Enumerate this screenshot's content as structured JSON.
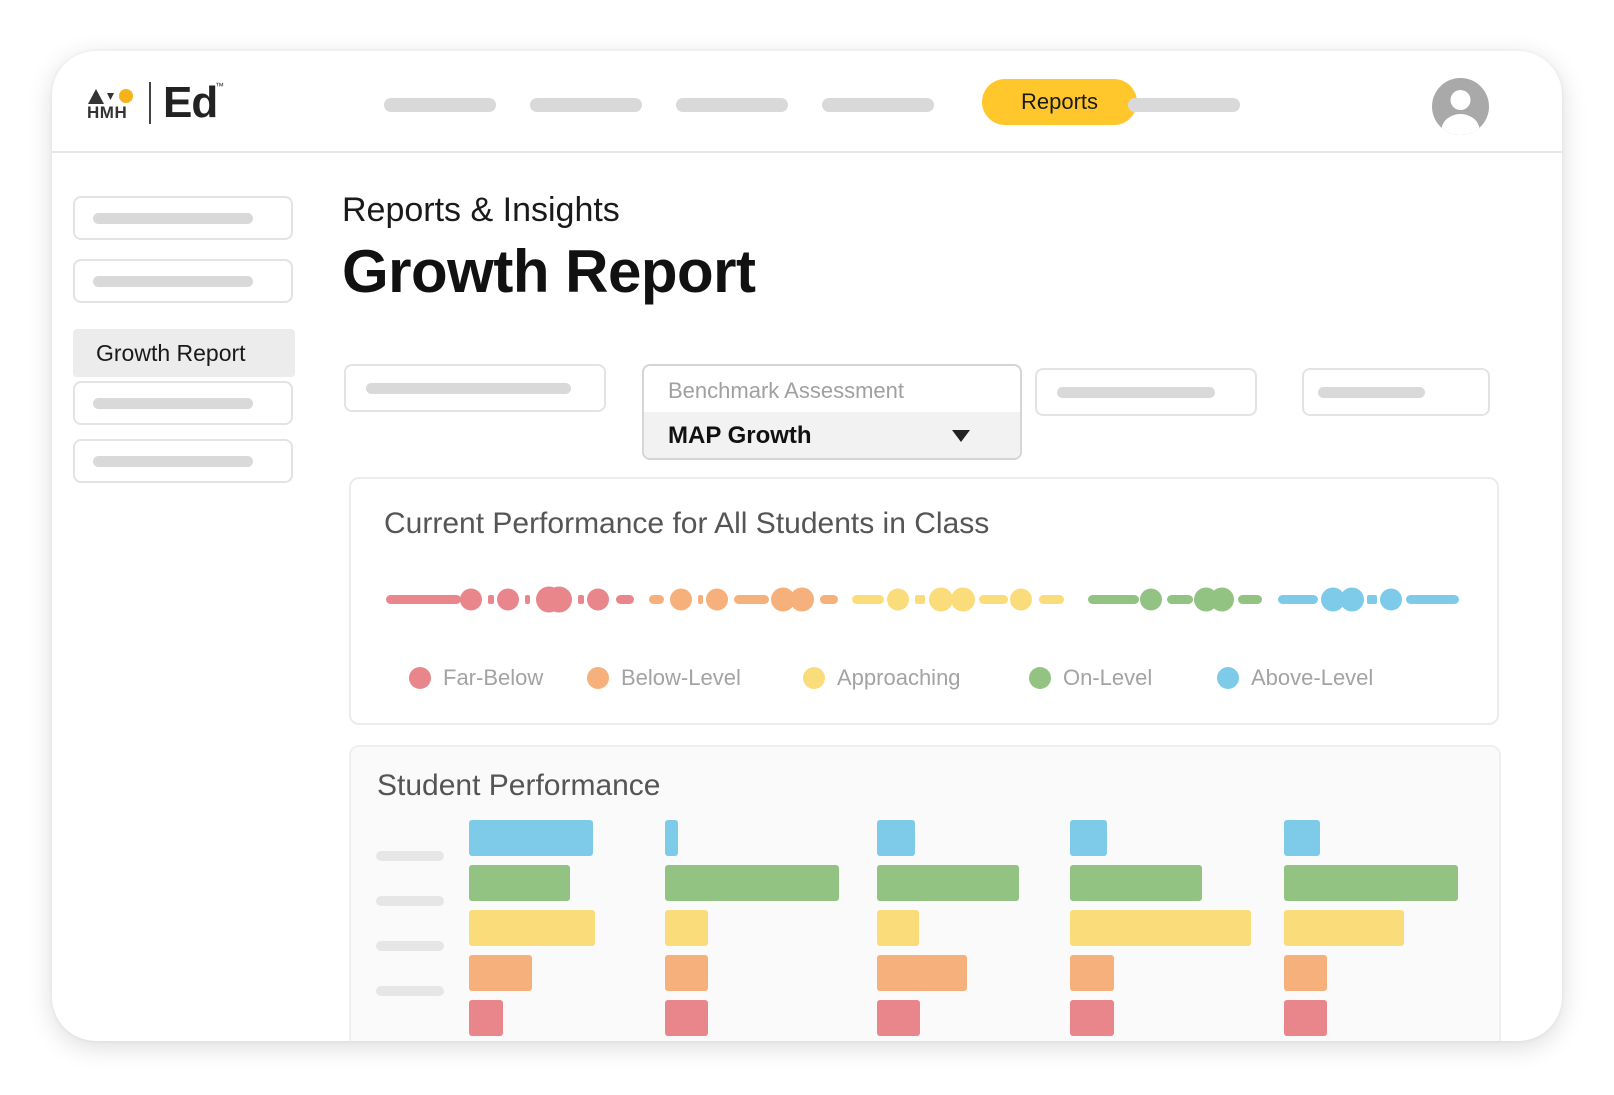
{
  "app": {
    "brand": "HMH",
    "product": "Ed",
    "trademark": "™"
  },
  "topnav": {
    "active_label": "Reports"
  },
  "sidebar": {
    "active_label": "Growth Report"
  },
  "page": {
    "subtitle": "Reports & Insights",
    "title": "Growth Report"
  },
  "filters": {
    "benchmark": {
      "label": "Benchmark Assessment",
      "value": "MAP Growth"
    }
  },
  "current_performance": {
    "title": "Current Performance for All Students in Class",
    "legend": [
      {
        "label": "Far-Below",
        "color": "#e8868c"
      },
      {
        "label": "Below-Level",
        "color": "#f5b07c"
      },
      {
        "label": "Approaching",
        "color": "#fbdc7a"
      },
      {
        "label": "On-Level",
        "color": "#92c383"
      },
      {
        "label": "Above-Level",
        "color": "#7ecbe9"
      }
    ]
  },
  "student_performance": {
    "title": "Student Performance"
  },
  "colors": {
    "accent": "#ffc72c",
    "far_below": "#e8868c",
    "below_level": "#f5b07c",
    "approaching": "#fbdc7a",
    "on_level": "#92c383",
    "above_level": "#7ecbe9"
  }
}
